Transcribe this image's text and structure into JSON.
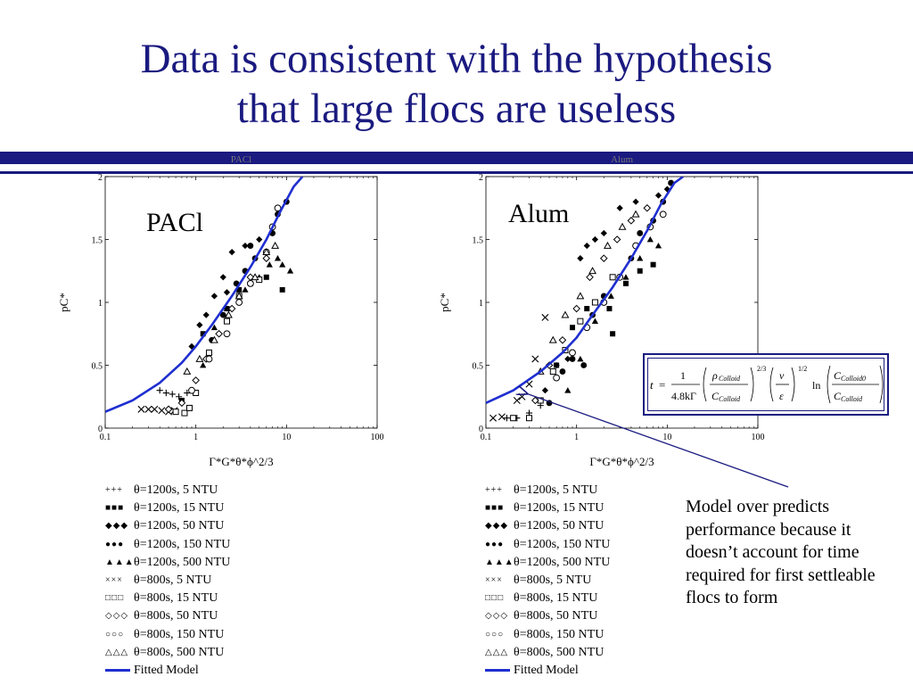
{
  "title": {
    "line1": "Data is consistent with the hypothesis",
    "line2": "that large flocs are useless"
  },
  "annotation": "Model over predicts performance because it doesn’t account for time required for first settleable flocs to form",
  "legend": [
    {
      "symbol": "+++",
      "label": "θ=1200s, 5 NTU"
    },
    {
      "symbol": "■■■",
      "label": "θ=1200s, 15 NTU"
    },
    {
      "symbol": "◆◆◆",
      "label": "θ=1200s, 50 NTU"
    },
    {
      "symbol": "●●●",
      "label": "θ=1200s, 150 NTU"
    },
    {
      "symbol": "▲▲▲",
      "label": "θ=1200s, 500 NTU"
    },
    {
      "symbol": "×××",
      "label": "θ=800s, 5 NTU"
    },
    {
      "symbol": "□□□",
      "label": "θ=800s, 15 NTU"
    },
    {
      "symbol": "◇◇◇",
      "label": "θ=800s, 50 NTU"
    },
    {
      "symbol": "○○○",
      "label": "θ=800s, 150 NTU"
    },
    {
      "symbol": "△△△",
      "label": "θ=800s, 500 NTU"
    },
    {
      "symbol": "",
      "label": "Fitted Model"
    }
  ],
  "formula": {
    "t": "t",
    "eq": "=",
    "one": "1",
    "den": "4.8kΓ",
    "rho": "ρ",
    "rho_sub": "Colloid",
    "c": "C",
    "c_sub": "Colloid",
    "exp_23": "2/3",
    "nu": "ν",
    "eps": "ε",
    "exp_12": "1/2",
    "ln": "ln",
    "c0_sub": "Colloid0"
  },
  "colors": {
    "title": "#1a1a80",
    "model": "#1f2fd0",
    "band": "#1a1a80"
  },
  "chart_data": [
    {
      "type": "scatter",
      "label": "PACl",
      "faint_title": "PACl",
      "xlabel": "Γ*G*θ*ϕ^2/3",
      "ylabel": "pC*",
      "xscale": "log",
      "xlim": [
        0.1,
        100
      ],
      "ylim": [
        0,
        2
      ],
      "xticks": [
        "0.1",
        "1",
        "10",
        "100"
      ],
      "yticks": [
        "0",
        "0.5",
        "1",
        "1.5",
        "2"
      ],
      "model": {
        "x": [
          0.1,
          0.2,
          0.4,
          0.7,
          1,
          1.5,
          2.5,
          4,
          6,
          8.5,
          12,
          15
        ],
        "y": [
          0.13,
          0.22,
          0.36,
          0.52,
          0.65,
          0.82,
          1.05,
          1.28,
          1.5,
          1.72,
          1.92,
          2.0
        ]
      },
      "series": [
        {
          "name": "θ=1200s, 5 NTU",
          "marker": "plus",
          "points": [
            [
              0.4,
              0.3
            ],
            [
              0.47,
              0.28
            ],
            [
              0.55,
              0.27
            ],
            [
              0.65,
              0.25
            ],
            [
              0.8,
              0.28
            ]
          ]
        },
        {
          "name": "θ=1200s, 15 NTU",
          "marker": "square",
          "points": [
            [
              0.7,
              0.22
            ],
            [
              1.2,
              0.75
            ],
            [
              2.2,
              0.95
            ],
            [
              3,
              1.1
            ],
            [
              4,
              1.15
            ],
            [
              6,
              1.2
            ],
            [
              9,
              1.1
            ]
          ]
        },
        {
          "name": "θ=1200s, 50 NTU",
          "marker": "diamond",
          "points": [
            [
              0.9,
              0.65
            ],
            [
              1.3,
              0.9
            ],
            [
              1.6,
              1.05
            ],
            [
              2,
              1.2
            ],
            [
              2.5,
              1.4
            ],
            [
              3.5,
              1.45
            ],
            [
              5,
              1.5
            ],
            [
              7,
              1.55
            ],
            [
              2.2,
              1.08
            ],
            [
              1.1,
              0.82
            ]
          ]
        },
        {
          "name": "θ=1200s, 150 NTU",
          "marker": "circle",
          "points": [
            [
              1.5,
              0.7
            ],
            [
              2,
              0.9
            ],
            [
              2.8,
              1.15
            ],
            [
              3.5,
              1.25
            ],
            [
              4.5,
              1.35
            ],
            [
              6,
              1.4
            ],
            [
              8,
              1.7
            ],
            [
              10,
              1.8
            ],
            [
              7,
              1.55
            ],
            [
              4,
              1.45
            ]
          ]
        },
        {
          "name": "θ=1200s, 500 NTU",
          "marker": "triangle",
          "points": [
            [
              1.2,
              0.5
            ],
            [
              1.6,
              0.8
            ],
            [
              2.2,
              0.95
            ],
            [
              3.5,
              1.1
            ],
            [
              5,
              1.2
            ],
            [
              6.5,
              1.3
            ],
            [
              8,
              1.35
            ],
            [
              9,
              1.3
            ],
            [
              11,
              1.25
            ]
          ]
        },
        {
          "name": "θ=800s, 5 NTU",
          "marker": "x",
          "points": [
            [
              0.25,
              0.15
            ],
            [
              0.3,
              0.15
            ],
            [
              0.35,
              0.15
            ],
            [
              0.42,
              0.14
            ],
            [
              0.5,
              0.13
            ],
            [
              0.58,
              0.14
            ]
          ]
        },
        {
          "name": "θ=800s, 15 NTU",
          "marker": "opensquare",
          "points": [
            [
              0.6,
              0.13
            ],
            [
              0.75,
              0.12
            ],
            [
              0.85,
              0.16
            ],
            [
              1,
              0.28
            ],
            [
              1.4,
              0.6
            ],
            [
              2.2,
              0.85
            ],
            [
              3,
              1.05
            ],
            [
              5,
              1.18
            ]
          ]
        },
        {
          "name": "θ=800s, 50 NTU",
          "marker": "opendiamond",
          "points": [
            [
              0.5,
              0.15
            ],
            [
              0.7,
              0.2
            ],
            [
              1,
              0.38
            ],
            [
              1.3,
              0.55
            ],
            [
              1.8,
              0.75
            ],
            [
              2.5,
              0.95
            ],
            [
              4,
              1.2
            ],
            [
              6,
              1.35
            ]
          ]
        },
        {
          "name": "θ=800s, 150 NTU",
          "marker": "opencircle",
          "points": [
            [
              0.9,
              0.3
            ],
            [
              1.4,
              0.55
            ],
            [
              2.2,
              0.75
            ],
            [
              3,
              1
            ],
            [
              4,
              1.15
            ],
            [
              6,
              1.4
            ],
            [
              7,
              1.6
            ],
            [
              8,
              1.75
            ]
          ]
        },
        {
          "name": "θ=800s, 500 NTU",
          "marker": "opentriangle",
          "points": [
            [
              0.8,
              0.45
            ],
            [
              1.1,
              0.55
            ],
            [
              1.6,
              0.7
            ],
            [
              2.3,
              0.9
            ],
            [
              3,
              1.05
            ],
            [
              4.5,
              1.2
            ],
            [
              6,
              1.4
            ],
            [
              7.5,
              1.45
            ]
          ]
        }
      ]
    },
    {
      "type": "scatter",
      "label": "Alum",
      "faint_title": "Alum",
      "xlabel": "Γ*G*θ*ϕ^2/3",
      "ylabel": "pC*",
      "xscale": "log",
      "xlim": [
        0.1,
        100
      ],
      "ylim": [
        0,
        2
      ],
      "xticks": [
        "0.1",
        "1",
        "10",
        "100"
      ],
      "yticks": [
        "0",
        "0.5",
        "1",
        "1.5",
        "2"
      ],
      "model": {
        "x": [
          0.1,
          0.2,
          0.4,
          0.7,
          1,
          1.5,
          2.5,
          4,
          6,
          8.5,
          12,
          15
        ],
        "y": [
          0.2,
          0.3,
          0.45,
          0.6,
          0.72,
          0.9,
          1.12,
          1.35,
          1.57,
          1.78,
          1.95,
          2.0
        ]
      },
      "series": [
        {
          "name": "θ=1200s, 5 NTU",
          "marker": "plus",
          "points": [
            [
              0.17,
              0.08
            ],
            [
              0.22,
              0.08
            ],
            [
              0.3,
              0.12
            ],
            [
              0.4,
              0.18
            ]
          ]
        },
        {
          "name": "θ=1200s, 15 NTU",
          "marker": "square",
          "points": [
            [
              0.6,
              0.5
            ],
            [
              0.9,
              0.8
            ],
            [
              1.3,
              0.95
            ],
            [
              2.3,
              0.95
            ],
            [
              2.5,
              0.75
            ],
            [
              3.5,
              1.15
            ],
            [
              5,
              1.25
            ],
            [
              7,
              1.3
            ]
          ]
        },
        {
          "name": "θ=1200s, 50 NTU",
          "marker": "diamond",
          "points": [
            [
              0.45,
              0.3
            ],
            [
              0.6,
              0.5
            ],
            [
              0.8,
              0.55
            ],
            [
              1.1,
              1.35
            ],
            [
              1.3,
              1.45
            ],
            [
              1.6,
              1.5
            ],
            [
              2,
              1.55
            ],
            [
              3,
              1.75
            ],
            [
              4.5,
              1.8
            ],
            [
              6,
              1.75
            ],
            [
              8,
              1.85
            ],
            [
              10,
              1.9
            ]
          ]
        },
        {
          "name": "θ=1200s, 150 NTU",
          "marker": "circle",
          "points": [
            [
              0.5,
              0.2
            ],
            [
              0.7,
              0.45
            ],
            [
              0.9,
              0.55
            ],
            [
              1.2,
              0.5
            ],
            [
              1.5,
              0.9
            ],
            [
              2,
              1.05
            ],
            [
              3,
              1.2
            ],
            [
              4,
              1.35
            ],
            [
              5,
              1.55
            ],
            [
              7,
              1.65
            ],
            [
              9,
              1.8
            ],
            [
              11,
              1.95
            ]
          ]
        },
        {
          "name": "θ=1200s, 500 NTU",
          "marker": "triangle",
          "points": [
            [
              0.8,
              0.3
            ],
            [
              1.1,
              0.55
            ],
            [
              1.6,
              0.85
            ],
            [
              2.4,
              1.05
            ],
            [
              3.5,
              1.2
            ],
            [
              5,
              1.35
            ],
            [
              6.5,
              1.5
            ],
            [
              8,
              1.45
            ]
          ]
        },
        {
          "name": "θ=800s, 5 NTU",
          "marker": "x",
          "points": [
            [
              0.12,
              0.08
            ],
            [
              0.15,
              0.09
            ],
            [
              0.22,
              0.22
            ],
            [
              0.25,
              0.25
            ],
            [
              0.3,
              0.35
            ],
            [
              0.35,
              0.55
            ],
            [
              0.45,
              0.88
            ]
          ]
        },
        {
          "name": "θ=800s, 15 NTU",
          "marker": "opensquare",
          "points": [
            [
              0.2,
              0.08
            ],
            [
              0.3,
              0.08
            ],
            [
              0.4,
              0.22
            ],
            [
              0.55,
              0.45
            ],
            [
              0.75,
              0.62
            ],
            [
              1.1,
              0.85
            ],
            [
              1.6,
              1.0
            ],
            [
              2.5,
              1.2
            ]
          ]
        },
        {
          "name": "θ=800s, 50 NTU",
          "marker": "opendiamond",
          "points": [
            [
              0.35,
              0.22
            ],
            [
              0.5,
              0.5
            ],
            [
              0.7,
              0.7
            ],
            [
              1,
              0.95
            ],
            [
              1.4,
              1.2
            ],
            [
              2,
              1.35
            ],
            [
              2.8,
              1.5
            ],
            [
              4,
              1.65
            ],
            [
              6,
              1.75
            ]
          ]
        },
        {
          "name": "θ=800s, 150 NTU",
          "marker": "opencircle",
          "points": [
            [
              0.6,
              0.4
            ],
            [
              0.9,
              0.6
            ],
            [
              1.3,
              0.8
            ],
            [
              2,
              1.0
            ],
            [
              3,
              1.2
            ],
            [
              4.5,
              1.45
            ],
            [
              6.5,
              1.6
            ],
            [
              9,
              1.7
            ]
          ]
        },
        {
          "name": "θ=800s, 500 NTU",
          "marker": "opentriangle",
          "points": [
            [
              0.4,
              0.45
            ],
            [
              0.55,
              0.7
            ],
            [
              0.75,
              0.9
            ],
            [
              1.1,
              1.05
            ],
            [
              1.5,
              1.25
            ],
            [
              2.2,
              1.45
            ],
            [
              3.2,
              1.6
            ],
            [
              4.5,
              1.7
            ]
          ]
        }
      ]
    }
  ]
}
